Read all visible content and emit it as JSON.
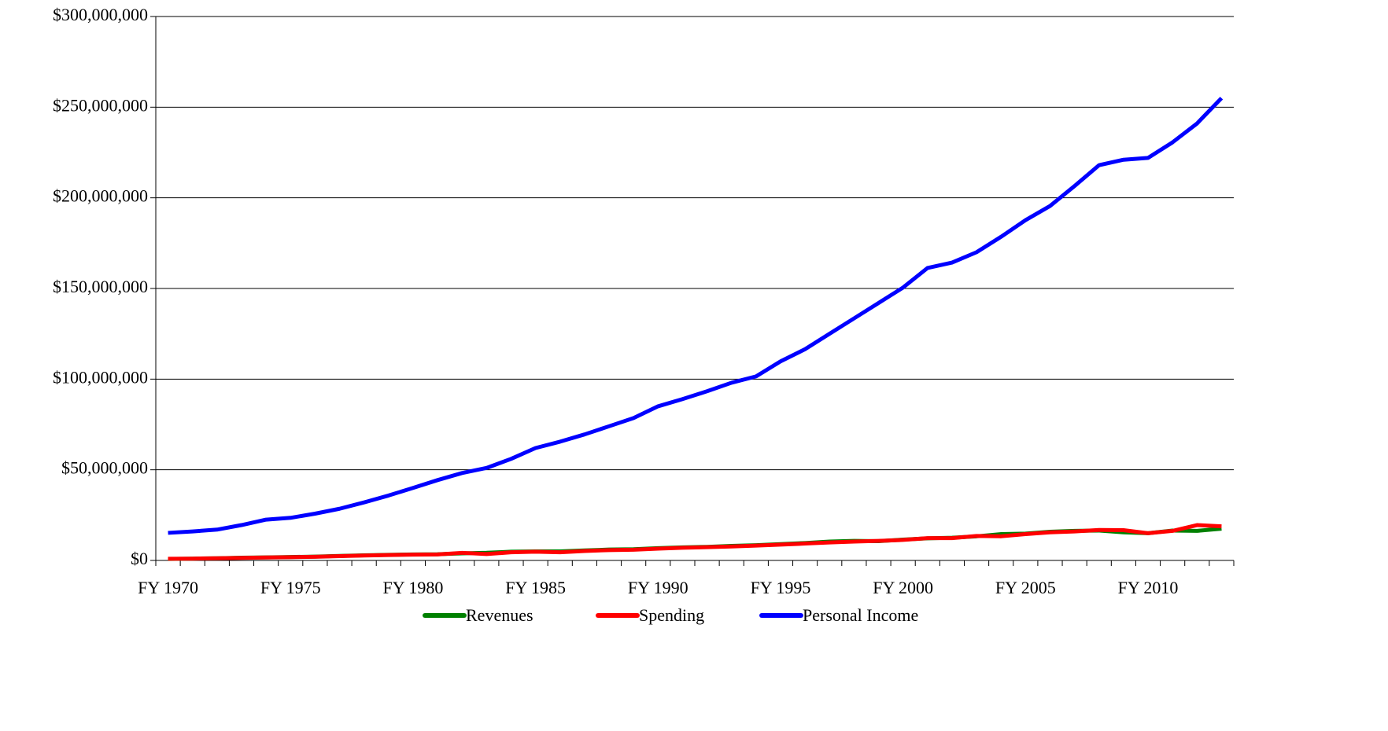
{
  "chart_data": {
    "type": "line",
    "categories": [
      "FY 1970",
      null,
      null,
      null,
      null,
      "FY 1975",
      null,
      null,
      null,
      null,
      "FY 1980",
      null,
      null,
      null,
      null,
      "FY 1985",
      null,
      null,
      null,
      null,
      "FY 1990",
      null,
      null,
      null,
      null,
      "FY 1995",
      null,
      null,
      null,
      null,
      "FY 2000",
      null,
      null,
      null,
      null,
      "FY 2005",
      null,
      null,
      null,
      null,
      "FY 2010",
      null,
      null,
      null
    ],
    "series": [
      {
        "name": "Revenues",
        "color": "#008000",
        "values": [
          800000,
          1000000,
          1200000,
          1500000,
          1700000,
          1900000,
          2100000,
          2500000,
          2800000,
          3100000,
          3300000,
          3400000,
          3900000,
          4200000,
          4800000,
          5000000,
          5000000,
          5500000,
          6000000,
          6200000,
          6800000,
          7200000,
          7500000,
          8000000,
          8400000,
          9000000,
          9600000,
          10400000,
          10800000,
          10600000,
          11500000,
          12200000,
          12500000,
          13300000,
          14500000,
          14800000,
          15800000,
          16300000,
          16500000,
          15500000,
          15000000,
          16500000,
          16300000,
          17500000
        ]
      },
      {
        "name": "Spending",
        "color": "#ff0000",
        "values": [
          900000,
          1000000,
          1200000,
          1400000,
          1600000,
          1800000,
          2000000,
          2400000,
          2700000,
          3000000,
          3200000,
          3300000,
          4200000,
          3500000,
          4500000,
          4800000,
          4500000,
          5200000,
          5700000,
          5900000,
          6500000,
          7000000,
          7300000,
          7700000,
          8200000,
          8700000,
          9300000,
          9900000,
          10400000,
          10800000,
          11300000,
          12300000,
          12300000,
          13500000,
          13300000,
          14500000,
          15500000,
          16000000,
          16800000,
          16700000,
          15000000,
          16300000,
          19500000,
          18800000
        ]
      },
      {
        "name": "Personal Income",
        "color": "#0000ff",
        "values": [
          15200000,
          16000000,
          17000000,
          19500000,
          22500000,
          23500000,
          25800000,
          28500000,
          32000000,
          35800000,
          40000000,
          44300000,
          48200000,
          51000000,
          56000000,
          62000000,
          65500000,
          69500000,
          74000000,
          78500000,
          85000000,
          89000000,
          93300000,
          98000000,
          101500000,
          109800000,
          116500000,
          125000000,
          133500000,
          142000000,
          150500000,
          161300000,
          164300000,
          170000000,
          178500000,
          187700000,
          195500000,
          206500000,
          218000000,
          221000000,
          222000000,
          230600000,
          241000000,
          255000000
        ]
      }
    ],
    "ylim": [
      0,
      300000000
    ],
    "yticks": [
      {
        "value": 0,
        "label": "$0"
      },
      {
        "value": 50000000,
        "label": "$50,000,000"
      },
      {
        "value": 100000000,
        "label": "$100,000,000"
      },
      {
        "value": 150000000,
        "label": "$150,000,000"
      },
      {
        "value": 200000000,
        "label": "$200,000,000"
      },
      {
        "value": 250000000,
        "label": "$250,000,000"
      },
      {
        "value": 300000000,
        "label": "$300,000,000"
      }
    ],
    "grid": true,
    "legend": "bottom"
  }
}
